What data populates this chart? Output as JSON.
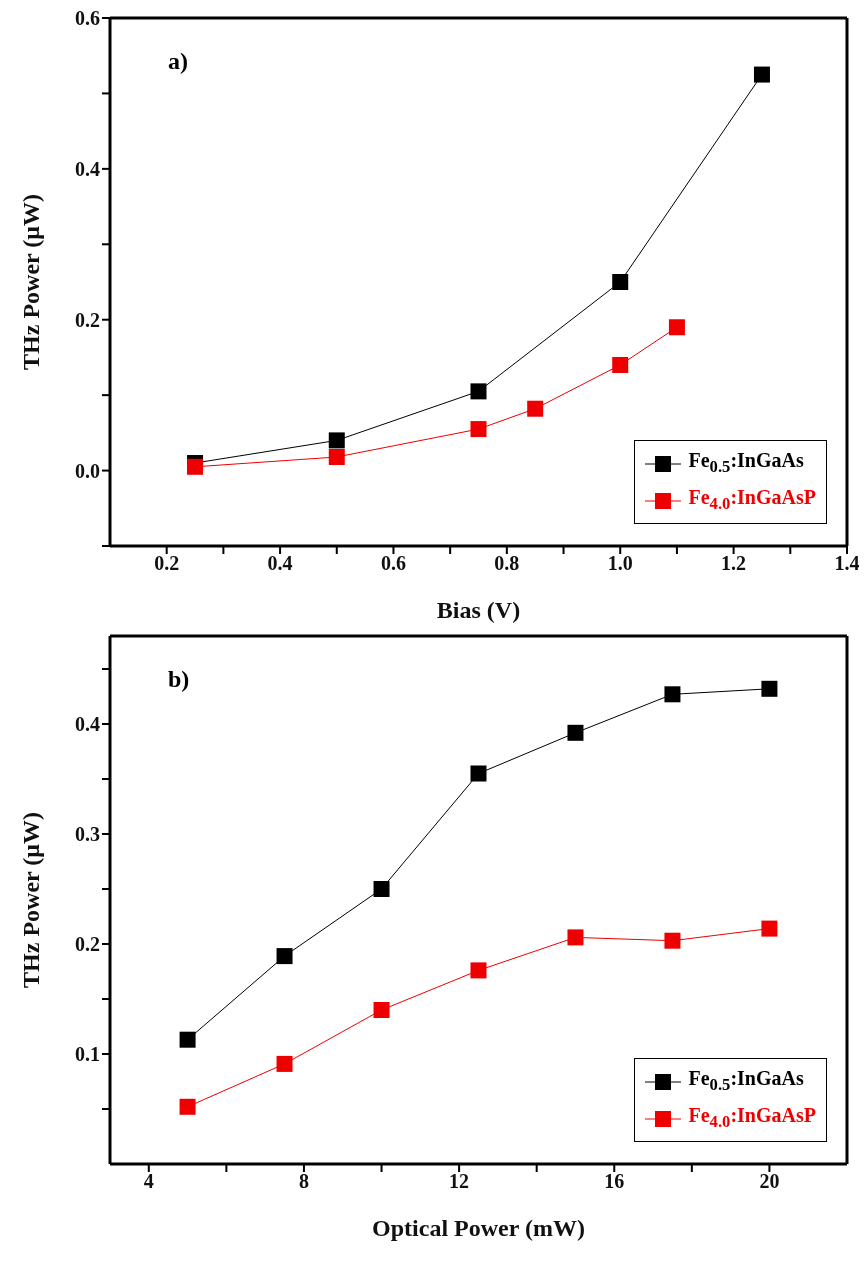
{
  "chart_data": [
    {
      "type": "line",
      "xlabel": "Bias (V)",
      "ylabel": "THz Power (μW)",
      "annotations": [
        "a)"
      ],
      "xlim": [
        0.1,
        1.4
      ],
      "ylim": [
        -0.1,
        0.6
      ],
      "xticks": [
        0.2,
        {
          "value": 0.3,
          "label": null
        },
        0.4,
        {
          "value": 0.5,
          "label": null
        },
        0.6,
        {
          "value": 0.7,
          "label": null
        },
        0.8,
        {
          "value": 0.9,
          "label": null
        },
        {
          "value": 1.0,
          "label": "1.0"
        },
        {
          "value": 1.1,
          "label": null
        },
        1.2,
        {
          "value": 1.3,
          "label": null
        },
        1.4
      ],
      "yticks": [
        {
          "value": -0.1,
          "label": null
        },
        {
          "value": 0.0,
          "label": "0.0"
        },
        {
          "value": 0.1,
          "label": null
        },
        0.2,
        {
          "value": 0.3,
          "label": null
        },
        0.4,
        {
          "value": 0.5,
          "label": null
        },
        0.6
      ],
      "marker": "square",
      "legend": "bottom right",
      "grid": false,
      "series": [
        {
          "name": "Fe$_{0.5}$:InGaAs",
          "color": "#000000",
          "x": [
            0.25,
            0.5,
            0.75,
            1.0,
            1.25
          ],
          "values": [
            0.01,
            0.04,
            0.105,
            0.25,
            0.525
          ]
        },
        {
          "name": "Fe$_{4.0}$:InGaAsP",
          "color": "#ee0000",
          "x": [
            0.25,
            0.5,
            0.75,
            0.85,
            1.0,
            1.1
          ],
          "values": [
            0.005,
            0.018,
            0.055,
            0.082,
            0.14,
            0.19
          ]
        }
      ]
    },
    {
      "type": "line",
      "xlabel": "Optical Power (mW)",
      "ylabel": "THz Power (μW)",
      "annotations": [
        "b)"
      ],
      "xlim": [
        3,
        22
      ],
      "ylim": [
        0,
        0.48
      ],
      "xticks": [
        4,
        {
          "value": 6,
          "label": null
        },
        8,
        {
          "value": 10,
          "label": null
        },
        12,
        {
          "value": 14,
          "label": null
        },
        16,
        {
          "value": 18,
          "label": null
        },
        20
      ],
      "yticks": [
        {
          "value": 0.05,
          "label": null
        },
        0.1,
        {
          "value": 0.15,
          "label": null
        },
        0.2,
        {
          "value": 0.25,
          "label": null
        },
        0.3,
        {
          "value": 0.35,
          "label": null
        },
        0.4,
        {
          "value": 0.45,
          "label": null
        }
      ],
      "marker": "square",
      "legend": "bottom right",
      "grid": false,
      "series": [
        {
          "name": "Fe$_{0.5}$:InGaAs",
          "color": "#000000",
          "x": [
            5,
            7.5,
            10,
            12.5,
            15,
            17.5,
            20
          ],
          "values": [
            0.113,
            0.189,
            0.25,
            0.355,
            0.392,
            0.427,
            0.432
          ]
        },
        {
          "name": "Fe$_{4.0}$:InGaAsP",
          "color": "#ee0000",
          "x": [
            5,
            7.5,
            10,
            12.5,
            15,
            17.5,
            20
          ],
          "values": [
            0.052,
            0.091,
            0.14,
            0.176,
            0.206,
            0.203,
            0.214
          ]
        }
      ]
    }
  ]
}
